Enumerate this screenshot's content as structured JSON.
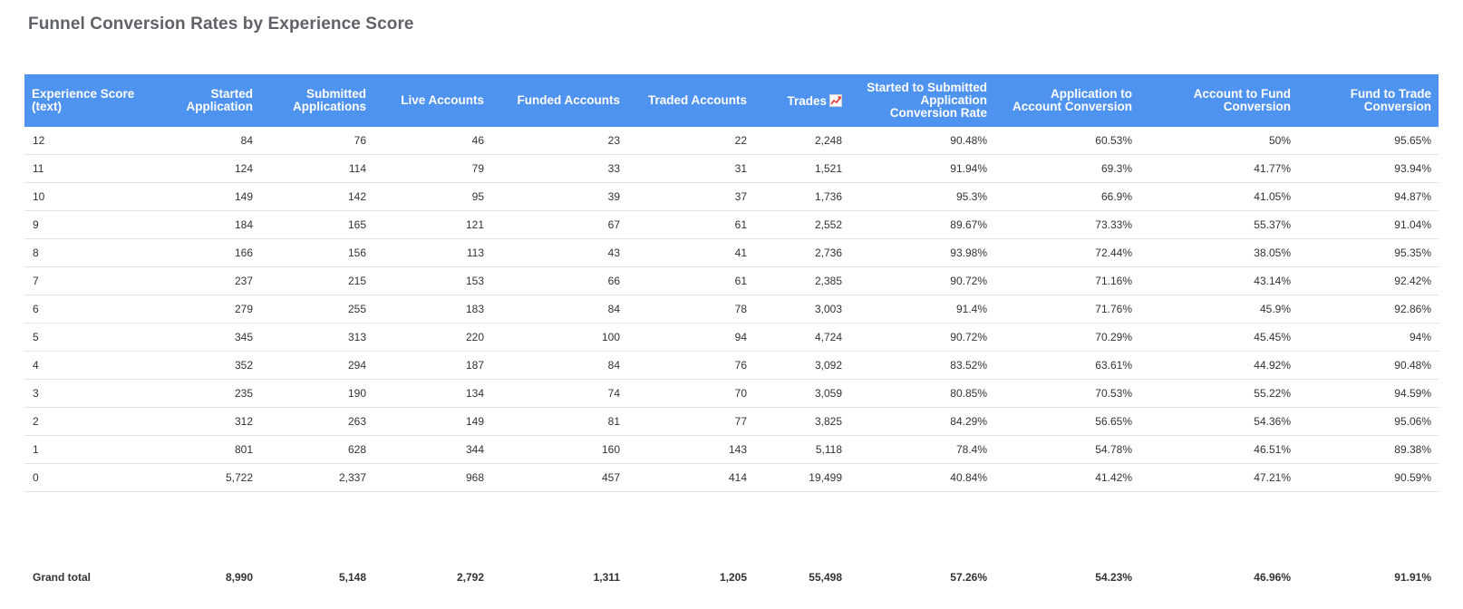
{
  "title": "Funnel Conversion Rates by Experience Score",
  "table": {
    "headers": [
      "Experience Score (text)",
      "Started Application",
      "Submitted Applications",
      "Live Accounts",
      "Funded Accounts",
      "Traded Accounts",
      "Trades",
      "Started to Submitted Application Conversion Rate",
      "Application to Account Conversion",
      "Account to Fund Conversion",
      "Fund to Trade Conversion"
    ],
    "trades_icon": "chart-trend-icon",
    "rows": [
      [
        "12",
        "84",
        "76",
        "46",
        "23",
        "22",
        "2,248",
        "90.48%",
        "60.53%",
        "50%",
        "95.65%"
      ],
      [
        "11",
        "124",
        "114",
        "79",
        "33",
        "31",
        "1,521",
        "91.94%",
        "69.3%",
        "41.77%",
        "93.94%"
      ],
      [
        "10",
        "149",
        "142",
        "95",
        "39",
        "37",
        "1,736",
        "95.3%",
        "66.9%",
        "41.05%",
        "94.87%"
      ],
      [
        "9",
        "184",
        "165",
        "121",
        "67",
        "61",
        "2,552",
        "89.67%",
        "73.33%",
        "55.37%",
        "91.04%"
      ],
      [
        "8",
        "166",
        "156",
        "113",
        "43",
        "41",
        "2,736",
        "93.98%",
        "72.44%",
        "38.05%",
        "95.35%"
      ],
      [
        "7",
        "237",
        "215",
        "153",
        "66",
        "61",
        "2,385",
        "90.72%",
        "71.16%",
        "43.14%",
        "92.42%"
      ],
      [
        "6",
        "279",
        "255",
        "183",
        "84",
        "78",
        "3,003",
        "91.4%",
        "71.76%",
        "45.9%",
        "92.86%"
      ],
      [
        "5",
        "345",
        "313",
        "220",
        "100",
        "94",
        "4,724",
        "90.72%",
        "70.29%",
        "45.45%",
        "94%"
      ],
      [
        "4",
        "352",
        "294",
        "187",
        "84",
        "76",
        "3,092",
        "83.52%",
        "63.61%",
        "44.92%",
        "90.48%"
      ],
      [
        "3",
        "235",
        "190",
        "134",
        "74",
        "70",
        "3,059",
        "80.85%",
        "70.53%",
        "55.22%",
        "94.59%"
      ],
      [
        "2",
        "312",
        "263",
        "149",
        "81",
        "77",
        "3,825",
        "84.29%",
        "56.65%",
        "54.36%",
        "95.06%"
      ],
      [
        "1",
        "801",
        "628",
        "344",
        "160",
        "143",
        "5,118",
        "78.4%",
        "54.78%",
        "46.51%",
        "89.38%"
      ],
      [
        "0",
        "5,722",
        "2,337",
        "968",
        "457",
        "414",
        "19,499",
        "40.84%",
        "41.42%",
        "47.21%",
        "90.59%"
      ]
    ],
    "total": [
      "Grand total",
      "8,990",
      "5,148",
      "2,792",
      "1,311",
      "1,205",
      "55,498",
      "57.26%",
      "54.23%",
      "46.96%",
      "91.91%"
    ]
  },
  "colors": {
    "header_bg": "#4f93f0",
    "header_text": "#ffffff",
    "row_border": "#e3e3e3"
  }
}
